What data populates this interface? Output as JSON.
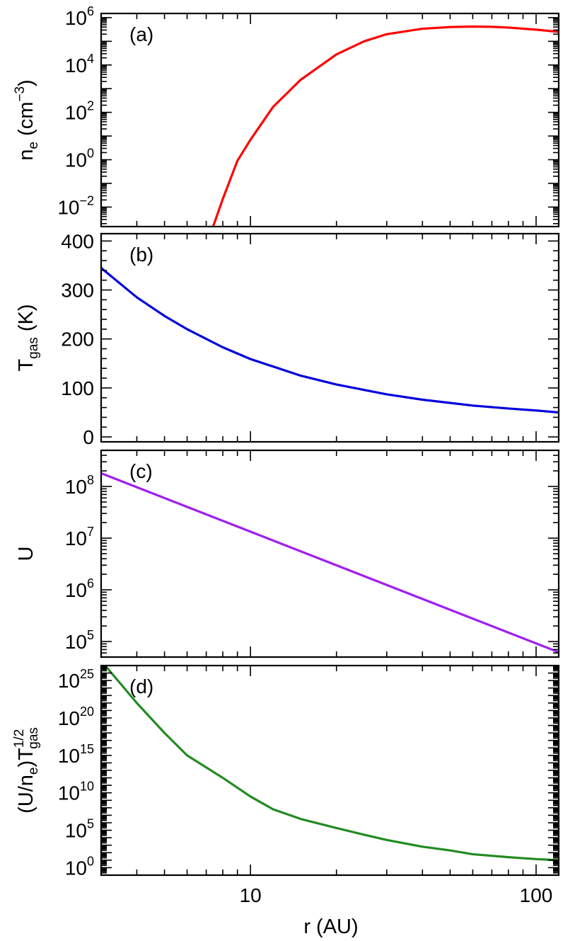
{
  "chart_data": [
    {
      "type": "line",
      "panel_label": "(a)",
      "ylabel": "n_e (cm^-3)",
      "ylabel_main": "n",
      "ylabel_sub": "e",
      "ylabel_rest": " (cm",
      "ylabel_sup": "−3",
      "ylabel_end": ")",
      "xscale": "log",
      "yscale": "log",
      "xlim": [
        3,
        120
      ],
      "ylim": [
        0.0015,
        1500000
      ],
      "yticks": [
        {
          "base": "10",
          "exp": "6",
          "value": 1000000
        },
        {
          "base": "10",
          "exp": "4",
          "value": 10000
        },
        {
          "base": "10",
          "exp": "2",
          "value": 100
        },
        {
          "base": "10",
          "exp": "0",
          "value": 1
        },
        {
          "base": "10",
          "exp": "−2",
          "value": 0.01
        }
      ],
      "color": "#ff0000",
      "series": [
        {
          "x": [
            7.4,
            8,
            9,
            10,
            12,
            15,
            20,
            25,
            30,
            40,
            50,
            60,
            70,
            80,
            100,
            120
          ],
          "y": [
            0.0015,
            0.022,
            0.9,
            7,
            170,
            2400,
            28000,
            100000,
            200000,
            340000,
            400000,
            420000,
            410000,
            380000,
            310000,
            250000
          ]
        }
      ]
    },
    {
      "type": "line",
      "panel_label": "(b)",
      "ylabel": "T_gas (K)",
      "ylabel_main": "T",
      "ylabel_sub": "gas",
      "ylabel_rest": " (K)",
      "xscale": "log",
      "yscale": "linear",
      "xlim": [
        3,
        120
      ],
      "ylim": [
        -10,
        415
      ],
      "yticks": [
        {
          "label": "400",
          "value": 400
        },
        {
          "label": "300",
          "value": 300
        },
        {
          "label": "200",
          "value": 200
        },
        {
          "label": "100",
          "value": 100
        },
        {
          "label": "0",
          "value": 0
        }
      ],
      "color": "#0000dd",
      "series": [
        {
          "x": [
            3,
            4,
            5,
            6,
            8,
            10,
            15,
            20,
            30,
            40,
            60,
            80,
            100,
            120
          ],
          "y": [
            345,
            285,
            247,
            220,
            183,
            159,
            125,
            107,
            87,
            76,
            64,
            58,
            54,
            50
          ]
        }
      ]
    },
    {
      "type": "line",
      "panel_label": "(c)",
      "ylabel": "U",
      "xscale": "log",
      "yscale": "log",
      "xlim": [
        3,
        120
      ],
      "ylim": [
        50000,
        500000000
      ],
      "yticks": [
        {
          "base": "10",
          "exp": "8",
          "value": 100000000
        },
        {
          "base": "10",
          "exp": "7",
          "value": 10000000
        },
        {
          "base": "10",
          "exp": "6",
          "value": 1000000
        },
        {
          "base": "10",
          "exp": "5",
          "value": 100000
        }
      ],
      "color": "#a020f0",
      "series": [
        {
          "x": [
            3,
            120
          ],
          "y": [
            180000000,
            62000
          ]
        }
      ]
    },
    {
      "type": "line",
      "panel_label": "(d)",
      "ylabel": "(U/n_e)T_gas^1/2",
      "ylabel_pre": "(U/n",
      "ylabel_sub1": "e",
      "ylabel_mid": ")T",
      "ylabel_sup": "1/2",
      "ylabel_sub2": "gas",
      "xscale": "log",
      "yscale": "log",
      "xlim": [
        3,
        120
      ],
      "ylim": [
        0.1,
        1e+27
      ],
      "yticks": [
        {
          "base": "10",
          "exp": "25",
          "value": 1e+25
        },
        {
          "base": "10",
          "exp": "20",
          "value": 1e+20
        },
        {
          "base": "10",
          "exp": "15",
          "value": 1000000000000000.0
        },
        {
          "base": "10",
          "exp": "10",
          "value": 10000000000.0
        },
        {
          "base": "10",
          "exp": "5",
          "value": 100000
        },
        {
          "base": "10",
          "exp": "0",
          "value": 1
        }
      ],
      "color": "#228b22",
      "series": [
        {
          "x": [
            3.1,
            4,
            5,
            6,
            8,
            10,
            12,
            15,
            20,
            25,
            30,
            40,
            50,
            60,
            80,
            100,
            120
          ],
          "y": [
            1e+27,
            1e+22,
            1e+18,
            1000000000000000.0,
            1000000000000.0,
            3200000000.0,
            63000000.0,
            3200000.0,
            200000.0,
            25000.0,
            5000,
            630,
            200,
            63,
            25,
            14,
            10
          ]
        }
      ]
    }
  ],
  "x_axis": {
    "xlabel": "r (AU)",
    "ticks": [
      {
        "label": "10",
        "value": 10
      },
      {
        "label": "100",
        "value": 100
      }
    ]
  }
}
